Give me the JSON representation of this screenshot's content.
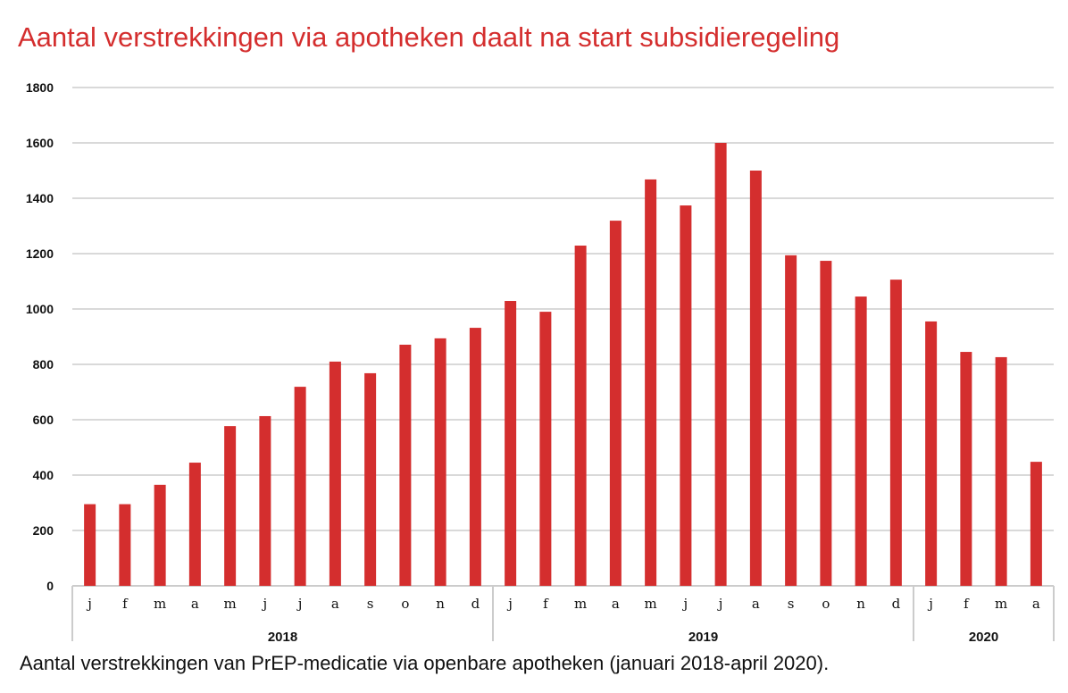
{
  "chart_data": {
    "type": "bar",
    "title": "Aantal verstrekkingen via apotheken daalt na start subsidieregeling",
    "caption": "Aantal verstrekkingen van PrEP-medicatie via openbare apotheken (januari 2018-april 2020).",
    "xlabel": "",
    "ylabel": "",
    "ylim": [
      0,
      1800
    ],
    "yticks": [
      0,
      200,
      400,
      600,
      800,
      1000,
      1200,
      1400,
      1600,
      1800
    ],
    "grid": true,
    "color": "#d42e2e",
    "groups": [
      {
        "year": "2018",
        "months": [
          "j",
          "f",
          "m",
          "a",
          "m",
          "j",
          "j",
          "a",
          "s",
          "o",
          "n",
          "d"
        ]
      },
      {
        "year": "2019",
        "months": [
          "j",
          "f",
          "m",
          "a",
          "m",
          "j",
          "j",
          "a",
          "s",
          "o",
          "n",
          "d"
        ]
      },
      {
        "year": "2020",
        "months": [
          "j",
          "f",
          "m",
          "a"
        ]
      }
    ],
    "values": [
      295,
      295,
      365,
      445,
      577,
      613,
      719,
      810,
      768,
      871,
      894,
      932,
      1029,
      990,
      1229,
      1319,
      1468,
      1374,
      1600,
      1500,
      1194,
      1174,
      1045,
      1106,
      955,
      845,
      826,
      448
    ]
  }
}
